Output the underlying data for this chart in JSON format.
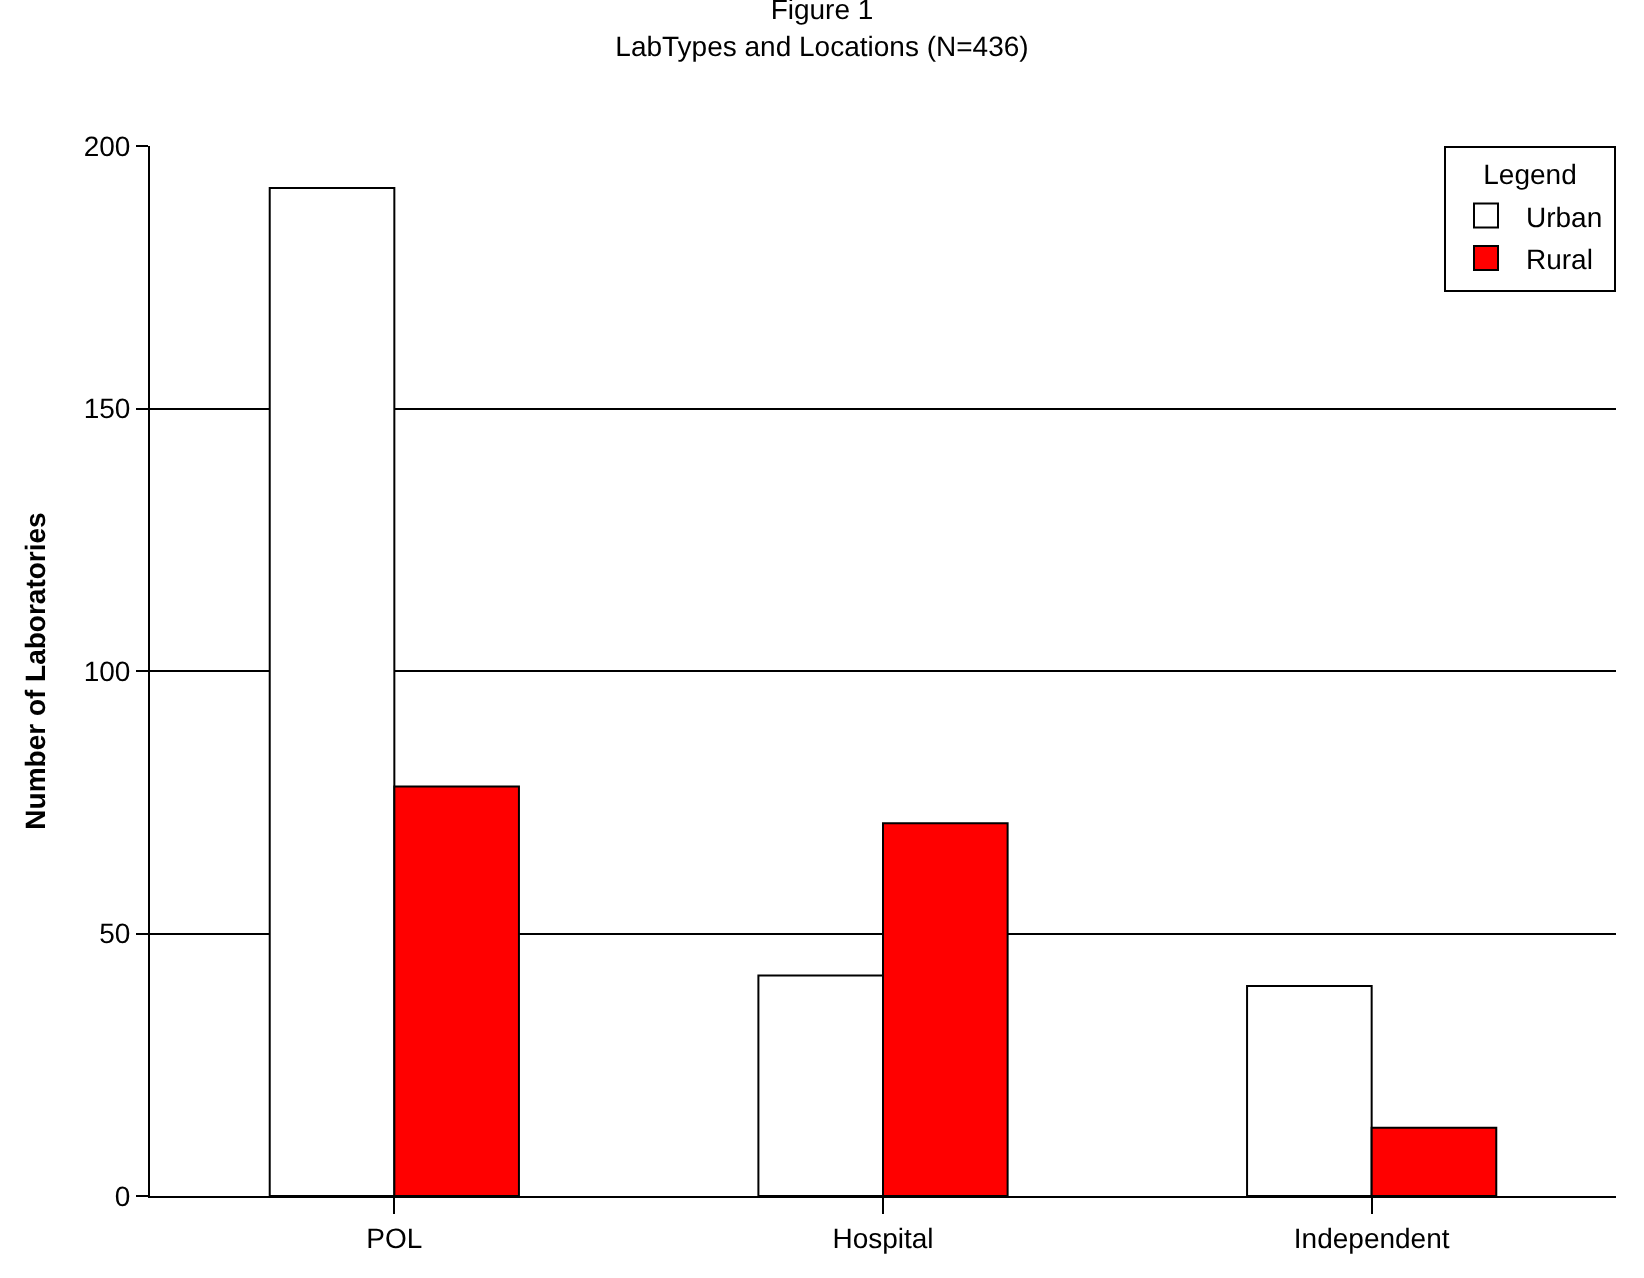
{
  "chart_data": {
    "type": "bar",
    "title": "Figure 1",
    "subtitle": "LabTypes and Locations (N=436)",
    "ylabel": "Number of Laboratories",
    "categories": [
      "POL",
      "Hospital",
      "Independent"
    ],
    "series": [
      {
        "name": "Urban",
        "color": "#ffffff",
        "values": [
          192,
          42,
          40
        ]
      },
      {
        "name": "Rural",
        "color": "#ff0000",
        "values": [
          78,
          71,
          13
        ]
      }
    ],
    "ylim": [
      0,
      200
    ],
    "yticks": [
      0,
      50,
      100,
      150,
      200
    ],
    "grid": "y",
    "legend": "top right",
    "legend_title": "Legend"
  }
}
